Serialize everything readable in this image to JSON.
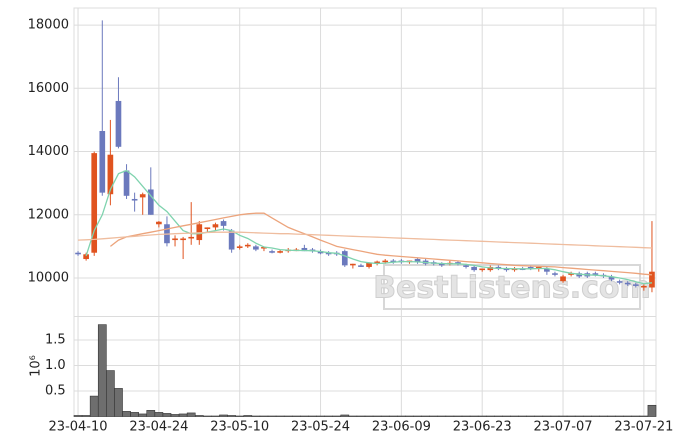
{
  "chart_data": {
    "type": "candlestick",
    "categories": [
      "23-04-10",
      null,
      null,
      null,
      null,
      null,
      null,
      null,
      null,
      null,
      "23-04-24",
      null,
      null,
      null,
      null,
      null,
      null,
      null,
      null,
      null,
      "23-05-10",
      null,
      null,
      null,
      null,
      null,
      null,
      null,
      null,
      null,
      "23-05-24",
      null,
      null,
      null,
      null,
      null,
      null,
      null,
      null,
      null,
      "23-06-09",
      null,
      null,
      null,
      null,
      null,
      null,
      null,
      null,
      null,
      "23-06-23",
      null,
      null,
      null,
      null,
      null,
      null,
      null,
      null,
      null,
      "23-07-07",
      null,
      null,
      null,
      null,
      null,
      null,
      null,
      null,
      null,
      "23-07-21",
      null
    ],
    "open": [
      10800,
      10600,
      10800,
      14650,
      12650,
      15600,
      13400,
      12500,
      12550,
      12800,
      11700,
      11700,
      11200,
      11200,
      11250,
      11200,
      11550,
      11600,
      11800,
      11500,
      10950,
      11000,
      11000,
      10950,
      10850,
      10800,
      10850,
      10900,
      10950,
      10900,
      10850,
      10800,
      10800,
      10850,
      10400,
      10400,
      10350,
      10450,
      10500,
      10550,
      10550,
      10500,
      10600,
      10550,
      10500,
      10450,
      10450,
      10500,
      10400,
      10350,
      10250,
      10250,
      10350,
      10300,
      10250,
      10300,
      10350,
      10300,
      10300,
      10150,
      9900,
      10100,
      10150,
      10150,
      10150,
      10100,
      10050,
      9900,
      9850,
      9800,
      9700,
      9700
    ],
    "high": [
      10850,
      10800,
      14000,
      18150,
      15000,
      16350,
      13600,
      12700,
      12700,
      13500,
      11800,
      11950,
      11350,
      11300,
      12400,
      11800,
      11600,
      11750,
      11850,
      11550,
      11050,
      11100,
      11050,
      11000,
      10900,
      10900,
      10950,
      10950,
      11050,
      10950,
      10900,
      10850,
      10850,
      10900,
      10450,
      10450,
      10500,
      10550,
      10600,
      10600,
      10600,
      10550,
      10650,
      10600,
      10550,
      10500,
      10550,
      10550,
      10450,
      10400,
      10300,
      10400,
      10400,
      10350,
      10350,
      10350,
      10400,
      10350,
      10350,
      10200,
      10100,
      10200,
      10200,
      10200,
      10200,
      10150,
      10100,
      9950,
      9900,
      9850,
      9800,
      11800
    ],
    "low": [
      10700,
      10550,
      10700,
      12600,
      12300,
      14100,
      12500,
      12100,
      12000,
      12000,
      11600,
      11000,
      11000,
      10600,
      11050,
      11050,
      11450,
      11500,
      11500,
      10800,
      10900,
      10950,
      10850,
      10850,
      10780,
      10780,
      10800,
      10850,
      10850,
      10800,
      10750,
      10700,
      10700,
      10350,
      10300,
      10350,
      10300,
      10400,
      10450,
      10450,
      10450,
      10450,
      10450,
      10400,
      10400,
      10350,
      10400,
      10400,
      10300,
      10200,
      10200,
      10200,
      10250,
      10200,
      10200,
      10250,
      10250,
      10200,
      10100,
      10050,
      9850,
      10050,
      10000,
      10000,
      10050,
      10000,
      9900,
      9800,
      9750,
      9700,
      9600,
      9550
    ],
    "close": [
      10750,
      10750,
      13950,
      12700,
      13900,
      14150,
      12600,
      12450,
      12650,
      12000,
      11780,
      11100,
      11250,
      11250,
      11300,
      11700,
      11600,
      11700,
      11650,
      10900,
      11000,
      11050,
      10900,
      10980,
      10800,
      10850,
      10900,
      10900,
      10850,
      10850,
      10780,
      10750,
      10750,
      10400,
      10450,
      10350,
      10480,
      10520,
      10550,
      10500,
      10500,
      10550,
      10500,
      10450,
      10450,
      10420,
      10480,
      10450,
      10350,
      10250,
      10300,
      10350,
      10300,
      10250,
      10300,
      10280,
      10300,
      10350,
      10200,
      10100,
      10050,
      10150,
      10050,
      10050,
      10100,
      10050,
      9950,
      9850,
      9800,
      9750,
      9750,
      10200
    ],
    "up_color": "#e0531f",
    "down_color": "#6b79bd",
    "lines": [
      {
        "color": "#7fd3ae",
        "values": [
          null,
          10700,
          11500,
          12000,
          12800,
          13300,
          13400,
          13200,
          12900,
          12600,
          12300,
          12100,
          11800,
          11500,
          11400,
          11400,
          11450,
          11500,
          11550,
          11500,
          11350,
          11250,
          11100,
          10980,
          10950,
          10900,
          10880,
          10870,
          10870,
          10860,
          10840,
          10800,
          10780,
          10700,
          10600,
          10520,
          10480,
          10460,
          10470,
          10500,
          10520,
          10520,
          10510,
          10490,
          10470,
          10460,
          10450,
          10450,
          10430,
          10400,
          10350,
          10320,
          10300,
          10300,
          10290,
          10290,
          10290,
          10300,
          10300,
          10260,
          10200,
          10150,
          10120,
          10100,
          10090,
          10070,
          10040,
          10000,
          9950,
          9880,
          9820,
          9850
        ]
      },
      {
        "color": "#eca47c",
        "values": [
          null,
          null,
          null,
          null,
          11000,
          11200,
          11300,
          11350,
          11400,
          11450,
          11500,
          11550,
          11600,
          11650,
          11700,
          11750,
          11800,
          11850,
          11900,
          11950,
          12000,
          12030,
          12050,
          12050,
          11900,
          11750,
          11600,
          11500,
          11400,
          11300,
          11200,
          11100,
          11000,
          10950,
          10900,
          10850,
          10800,
          10750,
          10720,
          10700,
          10680,
          10660,
          10640,
          10620,
          10600,
          10580,
          10560,
          10540,
          10520,
          10500,
          10480,
          10460,
          10440,
          10420,
          10400,
          10390,
          10380,
          10370,
          10360,
          10350,
          10330,
          10310,
          10290,
          10270,
          10250,
          10230,
          10210,
          10190,
          10170,
          10150,
          10120,
          10100
        ]
      },
      {
        "color": "#efbd9f",
        "values": [
          11200,
          11210,
          11220,
          11240,
          11260,
          11280,
          11300,
          11320,
          11340,
          11360,
          11380,
          11390,
          11400,
          11410,
          11420,
          11430,
          11440,
          11450,
          11450,
          11450,
          11450,
          11440,
          11430,
          11420,
          11410,
          11400,
          11400,
          11390,
          11380,
          11370,
          11360,
          11350,
          11340,
          11330,
          11320,
          11310,
          11300,
          11290,
          11280,
          11270,
          11260,
          11250,
          11240,
          11230,
          11220,
          11210,
          11200,
          11190,
          11180,
          11170,
          11160,
          11150,
          11140,
          11130,
          11120,
          11110,
          11100,
          11090,
          11080,
          11070,
          11060,
          11050,
          11040,
          11030,
          11020,
          11010,
          11000,
          10990,
          10980,
          10970,
          10960,
          10950
        ]
      }
    ],
    "ylim": [
      8830,
      18540
    ],
    "yticks": [
      10000,
      12000,
      14000,
      16000,
      18000
    ],
    "volume": {
      "color": "#6e6e6e",
      "ylabel": "10⁶",
      "values": [
        0.02,
        0.02,
        0.4,
        1.8,
        0.9,
        0.55,
        0.1,
        0.08,
        0.05,
        0.12,
        0.08,
        0.06,
        0.04,
        0.05,
        0.07,
        0.02,
        0.01,
        0.01,
        0.03,
        0.02,
        0.01,
        0.02,
        0.01,
        0.01,
        0.01,
        0.01,
        0.01,
        0.01,
        0.01,
        0.01,
        0.01,
        0.01,
        0.01,
        0.03,
        0.01,
        0.01,
        0.01,
        0.01,
        0.01,
        0.01,
        0.01,
        0.01,
        0.01,
        0.01,
        0.01,
        0.01,
        0.01,
        0.01,
        0.01,
        0.01,
        0.01,
        0.01,
        0.01,
        0.01,
        0.01,
        0.01,
        0.01,
        0.01,
        0.01,
        0.01,
        0.01,
        0.01,
        0.01,
        0.01,
        0.01,
        0.01,
        0.01,
        0.01,
        0.01,
        0.01,
        0.01,
        0.22
      ],
      "ylim": [
        0,
        1.93
      ],
      "yticks": [
        0.5,
        {
          "value": 1,
          "label": "1.0"
        },
        1.5
      ]
    },
    "grid": true,
    "watermark": "BestListens.com"
  }
}
